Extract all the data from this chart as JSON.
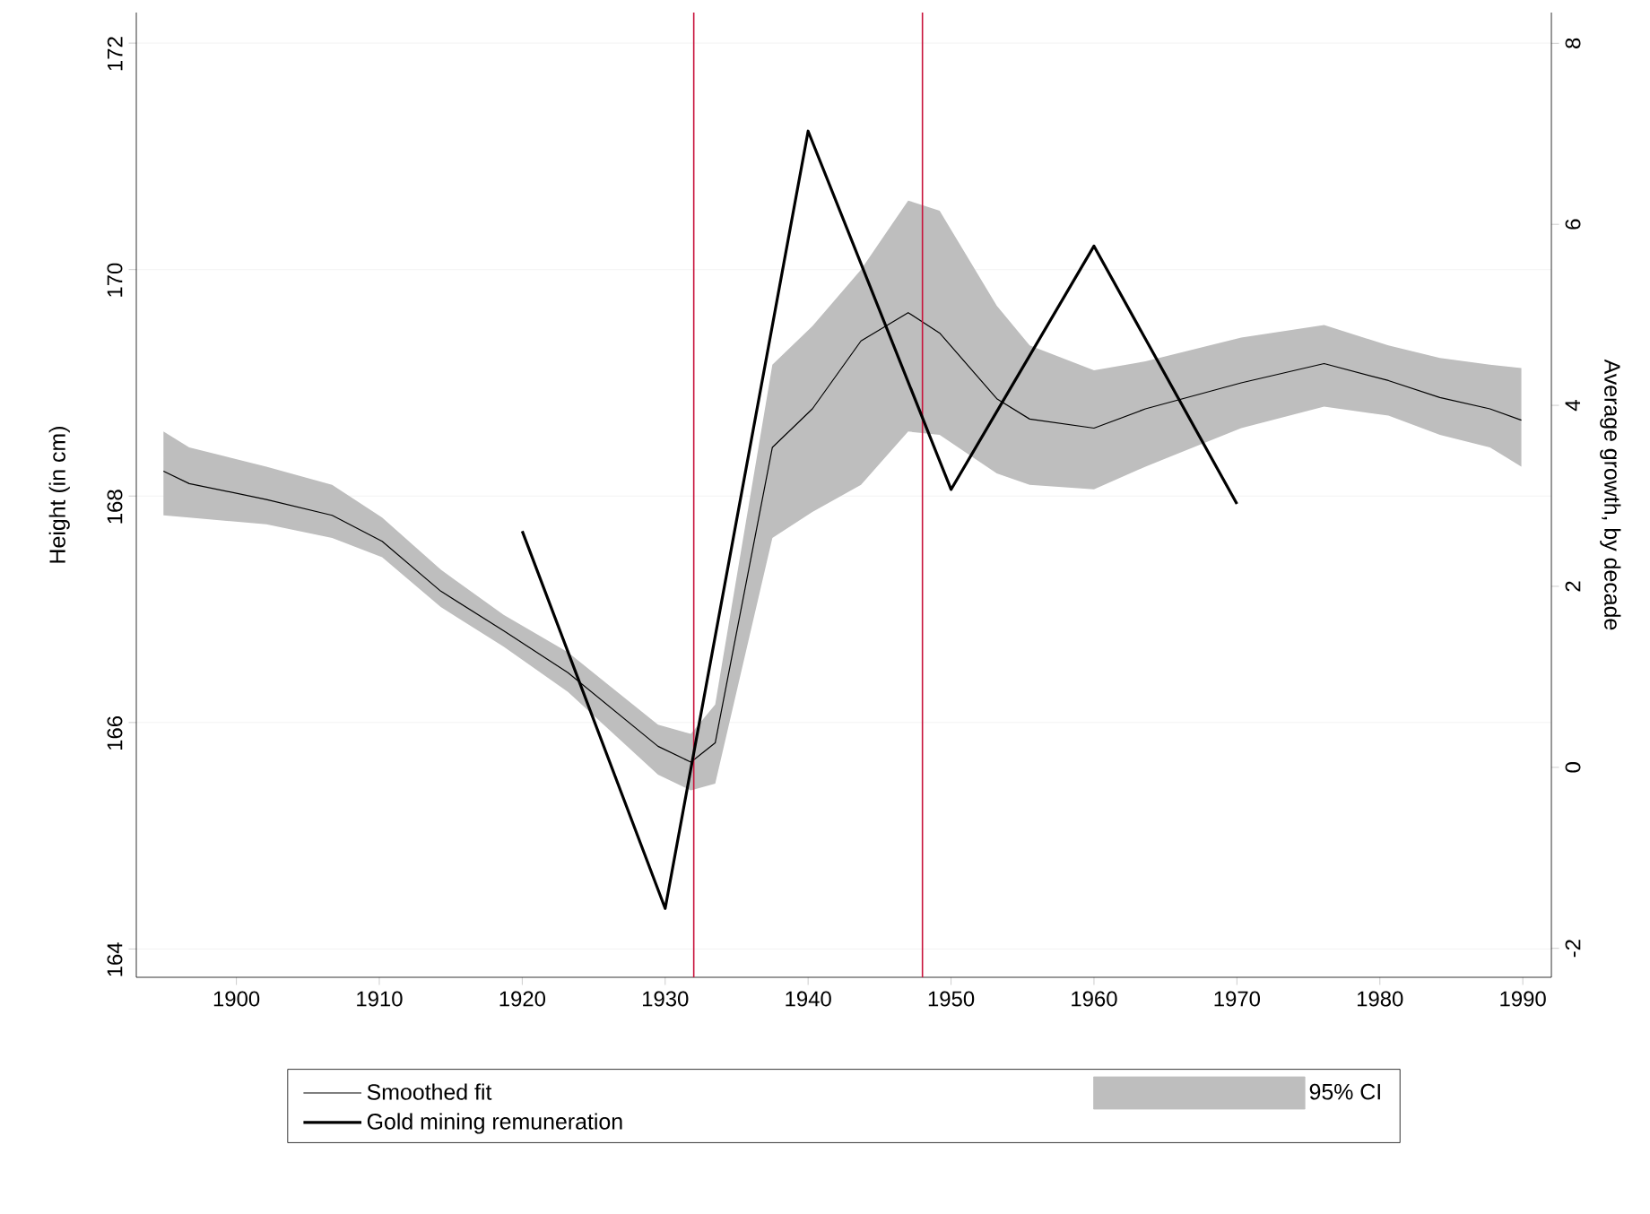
{
  "chart_data": {
    "type": "line",
    "ylabel": "Height (in cm)",
    "y2label": "Average growth, by decade",
    "xlim": [
      1893,
      1992
    ],
    "xticks": [
      1900,
      1910,
      1920,
      1930,
      1940,
      1950,
      1960,
      1970,
      1980,
      1990
    ],
    "ylim": [
      163.75,
      172.27
    ],
    "yticks": [
      164,
      166,
      168,
      170,
      172
    ],
    "y2lim": [
      -2.32,
      8.34
    ],
    "y2ticks": [
      -2,
      0,
      2,
      4,
      6,
      8
    ],
    "grid": "y",
    "legend": "bottom",
    "annotations": [
      "95% CI"
    ],
    "ref_lines": [
      {
        "axis": "x",
        "value": 1932,
        "color": "#c8143c"
      },
      {
        "axis": "x",
        "value": 1948,
        "color": "#c8143c"
      }
    ],
    "series": [
      {
        "name": "Smoothed fit",
        "color": "#000000",
        "x": [
          1894.9,
          1896.7,
          1902.1,
          1906.7,
          1910.2,
          1914.3,
          1918.7,
          1923.2,
          1929.5,
          1931.8,
          1933.5,
          1937.5,
          1940.3,
          1943.7,
          1947.0,
          1949.2,
          1953.2,
          1955.5,
          1960.0,
          1963.6,
          1970.3,
          1976.1,
          1980.6,
          1984.2,
          1987.7,
          1989.9
        ],
        "values": [
          168.22,
          168.11,
          167.97,
          167.83,
          167.6,
          167.16,
          166.81,
          166.44,
          165.79,
          165.65,
          165.82,
          168.43,
          168.77,
          169.37,
          169.62,
          169.44,
          168.86,
          168.68,
          168.6,
          168.77,
          169.0,
          169.17,
          169.02,
          168.87,
          168.77,
          168.67
        ],
        "lower": [
          167.83,
          167.81,
          167.75,
          167.63,
          167.46,
          167.02,
          166.67,
          166.27,
          165.54,
          165.4,
          165.46,
          167.63,
          167.86,
          168.1,
          168.57,
          168.54,
          168.2,
          168.1,
          168.06,
          168.26,
          168.6,
          168.79,
          168.71,
          168.54,
          168.43,
          168.26
        ],
        "upper": [
          168.57,
          168.43,
          168.26,
          168.1,
          167.81,
          167.35,
          166.95,
          166.62,
          165.98,
          165.9,
          166.16,
          169.16,
          169.5,
          170.0,
          170.61,
          170.52,
          169.68,
          169.33,
          169.11,
          169.19,
          169.4,
          169.51,
          169.33,
          169.22,
          169.16,
          169.13
        ]
      },
      {
        "name": "Gold mining remuneration",
        "axis": "y2",
        "color": "#000000",
        "x": [
          1920,
          1930,
          1940,
          1950,
          1960,
          1970
        ],
        "values": [
          2.61,
          -1.56,
          7.03,
          3.07,
          5.76,
          2.91
        ]
      }
    ]
  }
}
